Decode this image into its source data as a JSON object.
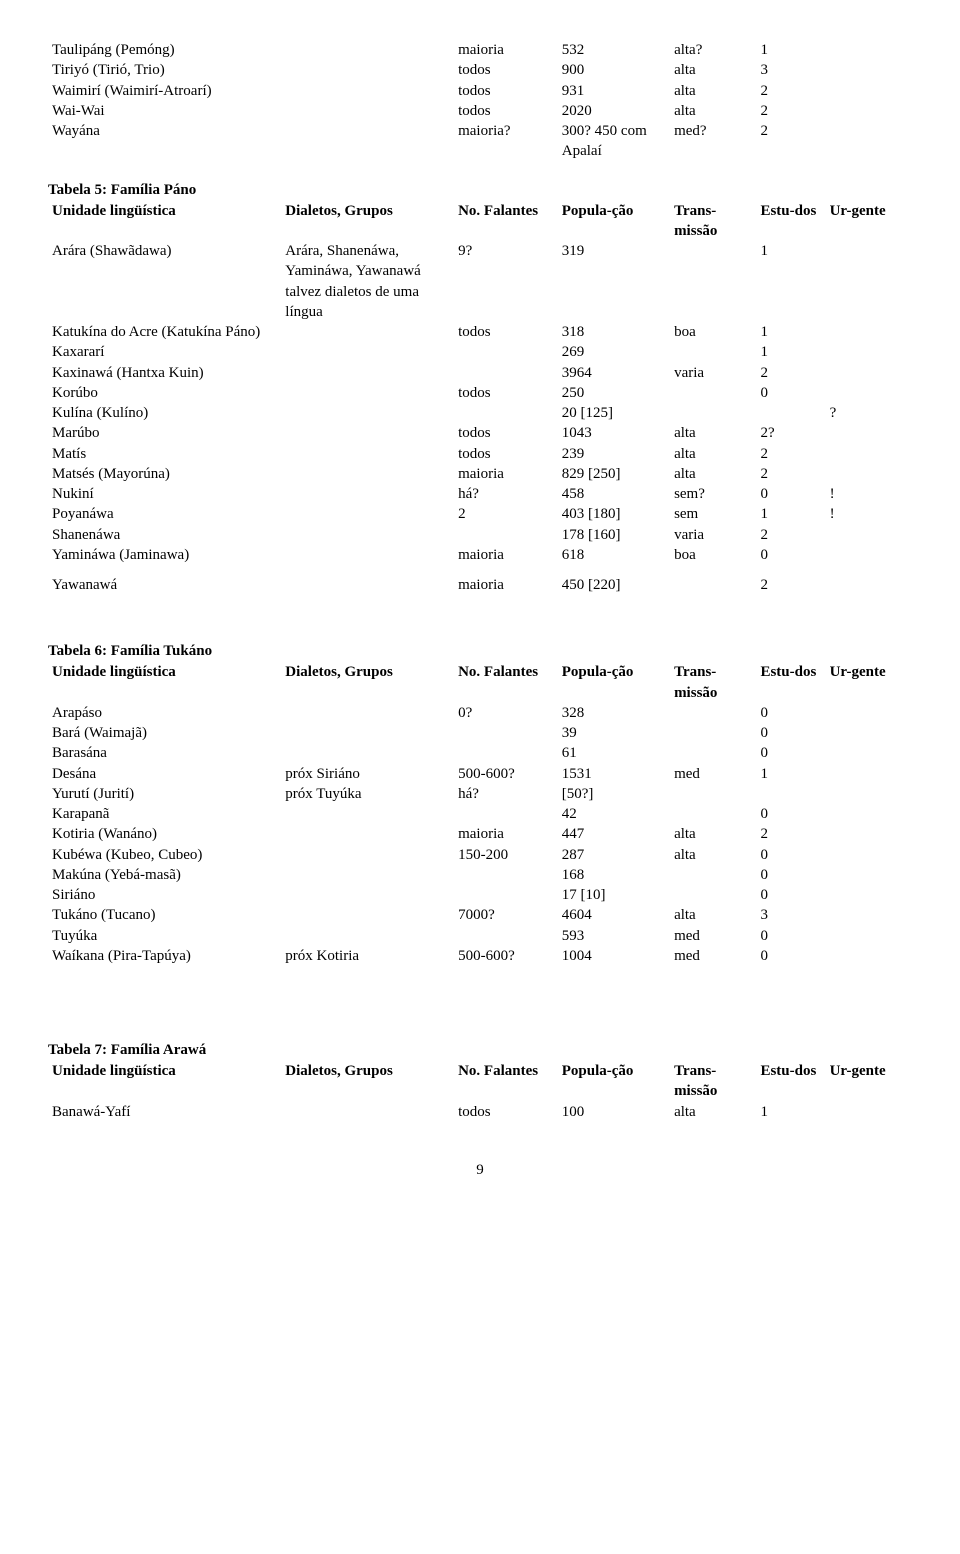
{
  "topRows": [
    [
      "Taulipáng (Pemóng)",
      "",
      "maioria",
      "532",
      "alta?",
      "1",
      ""
    ],
    [
      "Tiriyó (Tirió, Trio)",
      "",
      "todos",
      "900",
      "alta",
      "3",
      ""
    ],
    [
      "Waimirí (Waimirí-Atroarí)",
      "",
      "todos",
      "931",
      "alta",
      "2",
      ""
    ],
    [
      "Wai-Wai",
      "",
      "todos",
      "2020",
      "alta",
      "2",
      ""
    ],
    [
      "Wayána",
      "",
      "maioria?",
      "300? 450 com Apalaí",
      "med?",
      "2",
      ""
    ]
  ],
  "t5": {
    "title": "Tabela 5: Família Páno",
    "headers": [
      "Unidade lingüística",
      "Dialetos, Grupos",
      "No. Falantes",
      "Popula-ção",
      "Trans-missão",
      "Estu-dos",
      "Ur-gente"
    ],
    "rows": [
      [
        "Arára (Shawãdawa)",
        "Arára, Shanenáwa, Yamináwa, Yawanawá talvez dialetos de uma língua",
        "9?",
        "319",
        "",
        "1",
        ""
      ],
      [
        "Katukína do Acre (Katukína Páno)",
        "",
        "todos",
        "318",
        "boa",
        "1",
        ""
      ],
      [
        "Kaxararí",
        "",
        "",
        "269",
        "",
        "1",
        ""
      ],
      [
        "Kaxinawá (Hantxa Kuin)",
        "",
        "",
        "3964",
        "varia",
        "2",
        ""
      ],
      [
        "Korúbo",
        "",
        "todos",
        "250",
        "",
        "0",
        ""
      ],
      [
        "Kulína (Kulíno)",
        "",
        "",
        "20 [125]",
        "",
        "",
        "?"
      ],
      [
        "Marúbo",
        "",
        "todos",
        "1043",
        "alta",
        "2?",
        ""
      ],
      [
        "Matís",
        "",
        "todos",
        "239",
        "alta",
        "2",
        ""
      ],
      [
        "Matsés (Mayorúna)",
        "",
        "maioria",
        "829 [250]",
        "alta",
        "2",
        ""
      ],
      [
        "Nukiní",
        "",
        "há?",
        "458",
        "sem?",
        "0",
        "!"
      ],
      [
        "Poyanáwa",
        "",
        "2",
        "403 [180]",
        "sem",
        "1",
        "!"
      ],
      [
        "Shanenáwa",
        "",
        "",
        "178 [160]",
        "varia",
        "2",
        ""
      ],
      [
        "Yamináwa (Jaminawa)",
        "",
        "maioria",
        "618",
        "boa",
        "0",
        ""
      ]
    ],
    "lastRow": [
      "Yawanawá",
      "",
      "maioria",
      "450 [220]",
      "",
      "2",
      ""
    ]
  },
  "t6": {
    "title": "Tabela 6: Família Tukáno",
    "headers": [
      "Unidade lingüística",
      "Dialetos, Grupos",
      "No. Falantes",
      "Popula-ção",
      "Trans-missão",
      "Estu-dos",
      "Ur-gente"
    ],
    "rows": [
      [
        "Arapáso",
        "",
        "0?",
        "328",
        "",
        "0",
        ""
      ],
      [
        "Bará (Waimajã)",
        "",
        "",
        "39",
        "",
        "0",
        ""
      ],
      [
        "Barasána",
        "",
        "",
        "61",
        "",
        "0",
        ""
      ],
      [
        "Desána",
        "próx Siriáno",
        "500-600?",
        "1531",
        "med",
        "1",
        ""
      ],
      [
        "Yurutí (Jurití)",
        "próx Tuyúka",
        "há?",
        "[50?]",
        "",
        "",
        ""
      ],
      [
        "Karapanã",
        "",
        "",
        "42",
        "",
        "0",
        ""
      ],
      [
        "Kotiria (Wanáno)",
        "",
        "maioria",
        "447",
        "alta",
        "2",
        ""
      ],
      [
        "Kubéwa (Kubeo, Cubeo)",
        "",
        "150-200",
        "287",
        "alta",
        "0",
        ""
      ],
      [
        "Makúna (Yebá-masã)",
        "",
        "",
        "168",
        "",
        "0",
        ""
      ],
      [
        "Siriáno",
        "",
        "",
        "17 [10]",
        "",
        "0",
        ""
      ],
      [
        "Tukáno (Tucano)",
        "",
        "7000?",
        "4604",
        "alta",
        "3",
        ""
      ],
      [
        "Tuyúka",
        "",
        "",
        "593",
        "med",
        "0",
        ""
      ],
      [
        "Waíkana (Pira-Tapúya)",
        "próx Kotiria",
        "500-600?",
        "1004",
        "med",
        "0",
        ""
      ]
    ]
  },
  "t7": {
    "title": "Tabela 7: Família Arawá",
    "headers": [
      "Unidade lingüística",
      "Dialetos, Grupos",
      "No. Falantes",
      "Popula-ção",
      "Trans-missão",
      "Estu-dos",
      "Ur-gente"
    ],
    "rows": [
      [
        "Banawá-Yafí",
        "",
        "todos",
        "100",
        "alta",
        "1",
        ""
      ]
    ]
  },
  "pageNumber": "9"
}
